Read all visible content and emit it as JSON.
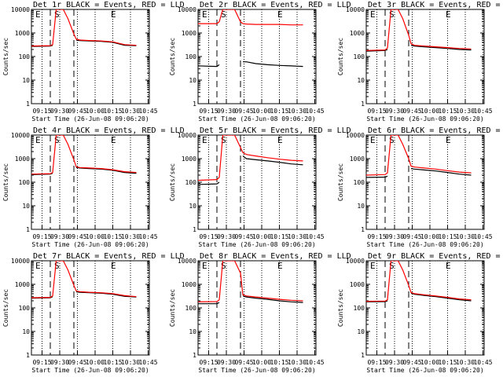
{
  "chart_data": [
    {
      "type": "line",
      "title": "Det 1r BLACK = Events, RED = LLD",
      "xlabel": "Start Time (26-Jun-08 09:06:20)",
      "ylabel": "Counts/sec",
      "yscale": "log",
      "ylim": [
        1,
        10000
      ],
      "xticks": [
        "09:15",
        "09:30",
        "09:45",
        "10:00",
        "10:15",
        "10:30",
        "10:45"
      ],
      "markers": [
        {
          "label": "E",
          "x": "09:08"
        },
        {
          "label": "S",
          "x": "09:24"
        },
        {
          "label": "E",
          "x": "10:12"
        }
      ],
      "series": [
        {
          "name": "Events",
          "color": "#000000",
          "x": [
            "09:06",
            "09:22",
            "09:24",
            "09:27",
            "09:37",
            "09:42",
            "09:44",
            "09:47",
            "09:55",
            "10:05",
            "10:15",
            "10:25",
            "10:35"
          ],
          "y": [
            270,
            280,
            300,
            null,
            null,
            null,
            500,
            480,
            460,
            440,
            400,
            300,
            290
          ]
        },
        {
          "name": "LLD",
          "color": "#ff0000",
          "x": [
            "09:06",
            "09:22",
            "09:24",
            "09:27",
            "09:33",
            "09:37",
            "09:42",
            "09:44",
            "09:47",
            "09:55",
            "10:05",
            "10:15",
            "10:25",
            "10:35"
          ],
          "y": [
            280,
            290,
            320,
            10000,
            10000,
            4000,
            900,
            550,
            500,
            480,
            460,
            420,
            320,
            300
          ]
        }
      ]
    },
    {
      "type": "line",
      "title": "Det 2r BLACK = Events, RED = LLD",
      "xlabel": "Start Time (26-Jun-08 09:06:20)",
      "ylabel": "Counts/sec",
      "yscale": "log",
      "ylim": [
        1,
        10000
      ],
      "xticks": [
        "09:15",
        "09:30",
        "09:45",
        "10:00",
        "10:15",
        "10:30",
        "10:45"
      ],
      "markers": [
        {
          "label": "E",
          "x": "09:08"
        },
        {
          "label": "S",
          "x": "09:24"
        },
        {
          "label": "E",
          "x": "10:12"
        }
      ],
      "series": [
        {
          "name": "Events",
          "color": "#000000",
          "x": [
            "09:06",
            "09:22",
            "09:24",
            "09:27",
            "09:37",
            "09:42",
            "09:44",
            "09:47",
            "09:55",
            "10:05",
            "10:15",
            "10:25",
            "10:35"
          ],
          "y": [
            40,
            38,
            45,
            null,
            null,
            null,
            60,
            60,
            50,
            45,
            42,
            40,
            38
          ]
        },
        {
          "name": "LLD",
          "color": "#ff0000",
          "x": [
            "09:06",
            "09:22",
            "09:24",
            "09:27",
            "09:33",
            "09:37",
            "09:42",
            "09:44",
            "09:47",
            "09:55",
            "10:05",
            "10:15",
            "10:25",
            "10:35"
          ],
          "y": [
            2500,
            2500,
            3000,
            10000,
            10000,
            10000,
            3000,
            2500,
            2400,
            2300,
            2300,
            2300,
            2200,
            2200
          ]
        }
      ]
    },
    {
      "type": "line",
      "title": "Det 3r BLACK = Events, RED = LLD",
      "xlabel": "Start Time (26-Jun-08 09:06:20)",
      "ylabel": "Counts/sec",
      "yscale": "log",
      "ylim": [
        1,
        10000
      ],
      "xticks": [
        "09:15",
        "09:30",
        "09:45",
        "10:00",
        "10:15",
        "10:30",
        "10:45"
      ],
      "markers": [
        {
          "label": "E",
          "x": "09:08"
        },
        {
          "label": "S",
          "x": "09:24"
        },
        {
          "label": "E",
          "x": "10:12"
        }
      ],
      "series": [
        {
          "name": "Events",
          "color": "#000000",
          "x": [
            "09:06",
            "09:22",
            "09:24",
            "09:27",
            "09:37",
            "09:42",
            "09:44",
            "09:47",
            "09:55",
            "10:05",
            "10:15",
            "10:25",
            "10:35"
          ],
          "y": [
            170,
            180,
            200,
            null,
            null,
            null,
            300,
            280,
            260,
            240,
            220,
            200,
            190
          ]
        },
        {
          "name": "LLD",
          "color": "#ff0000",
          "x": [
            "09:06",
            "09:22",
            "09:24",
            "09:27",
            "09:33",
            "09:37",
            "09:42",
            "09:44",
            "09:47",
            "09:55",
            "10:05",
            "10:15",
            "10:25",
            "10:35"
          ],
          "y": [
            180,
            190,
            230,
            10000,
            10000,
            4000,
            800,
            350,
            300,
            280,
            260,
            240,
            220,
            210
          ]
        }
      ]
    },
    {
      "type": "line",
      "title": "Det 4r BLACK = Events, RED = LLD",
      "xlabel": "Start Time (26-Jun-08 09:06:20)",
      "ylabel": "Counts/sec",
      "yscale": "log",
      "ylim": [
        1,
        10000
      ],
      "xticks": [
        "09:15",
        "09:30",
        "09:45",
        "10:00",
        "10:15",
        "10:30",
        "10:45"
      ],
      "markers": [
        {
          "label": "E",
          "x": "09:08"
        },
        {
          "label": "S",
          "x": "09:24"
        },
        {
          "label": "E",
          "x": "10:12"
        }
      ],
      "series": [
        {
          "name": "Events",
          "color": "#000000",
          "x": [
            "09:06",
            "09:22",
            "09:24",
            "09:27",
            "09:37",
            "09:42",
            "09:44",
            "09:47",
            "09:55",
            "10:05",
            "10:15",
            "10:25",
            "10:35"
          ],
          "y": [
            210,
            220,
            240,
            null,
            null,
            null,
            420,
            400,
            380,
            360,
            320,
            260,
            240
          ]
        },
        {
          "name": "LLD",
          "color": "#ff0000",
          "x": [
            "09:06",
            "09:22",
            "09:24",
            "09:27",
            "09:33",
            "09:37",
            "09:42",
            "09:44",
            "09:47",
            "09:55",
            "10:05",
            "10:15",
            "10:25",
            "10:35"
          ],
          "y": [
            220,
            230,
            260,
            10000,
            10000,
            4000,
            900,
            450,
            420,
            400,
            380,
            340,
            280,
            260
          ]
        }
      ]
    },
    {
      "type": "line",
      "title": "Det 5r BLACK = Events, RED = LLD",
      "xlabel": "Start Time (26-Jun-08 09:06:20)",
      "ylabel": "Counts/sec",
      "yscale": "log",
      "ylim": [
        1,
        10000
      ],
      "xticks": [
        "09:15",
        "09:30",
        "09:45",
        "10:00",
        "10:15",
        "10:30",
        "10:45"
      ],
      "markers": [
        {
          "label": "E",
          "x": "09:08"
        },
        {
          "label": "S",
          "x": "09:24"
        },
        {
          "label": "E",
          "x": "10:12"
        }
      ],
      "series": [
        {
          "name": "Events",
          "color": "#000000",
          "x": [
            "09:06",
            "09:22",
            "09:24",
            "09:27",
            "09:37",
            "09:42",
            "09:44",
            "09:47",
            "09:55",
            "10:05",
            "10:15",
            "10:25",
            "10:35"
          ],
          "y": [
            80,
            85,
            100,
            null,
            null,
            null,
            1300,
            1000,
            900,
            800,
            700,
            600,
            550
          ]
        },
        {
          "name": "LLD",
          "color": "#ff0000",
          "x": [
            "09:06",
            "09:22",
            "09:24",
            "09:27",
            "09:33",
            "09:37",
            "09:42",
            "09:44",
            "09:47",
            "09:55",
            "10:05",
            "10:15",
            "10:25",
            "10:35"
          ],
          "y": [
            120,
            130,
            160,
            10000,
            10000,
            10000,
            3000,
            1800,
            1500,
            1300,
            1100,
            950,
            850,
            800
          ]
        }
      ]
    },
    {
      "type": "line",
      "title": "Det 6r BLACK = Events, RED = LLD",
      "xlabel": "Start Time (26-Jun-08 09:06:20)",
      "ylabel": "Counts/sec",
      "yscale": "log",
      "ylim": [
        1,
        10000
      ],
      "xticks": [
        "09:15",
        "09:30",
        "09:45",
        "10:00",
        "10:15",
        "10:30",
        "10:45"
      ],
      "markers": [
        {
          "label": "E",
          "x": "09:08"
        },
        {
          "label": "S",
          "x": "09:24"
        },
        {
          "label": "E",
          "x": "10:12"
        }
      ],
      "series": [
        {
          "name": "Events",
          "color": "#000000",
          "x": [
            "09:06",
            "09:22",
            "09:24",
            "09:27",
            "09:37",
            "09:42",
            "09:44",
            "09:47",
            "09:55",
            "10:05",
            "10:15",
            "10:25",
            "10:35"
          ],
          "y": [
            160,
            165,
            180,
            null,
            null,
            null,
            380,
            360,
            330,
            300,
            260,
            220,
            200
          ]
        },
        {
          "name": "LLD",
          "color": "#ff0000",
          "x": [
            "09:06",
            "09:22",
            "09:24",
            "09:27",
            "09:33",
            "09:37",
            "09:42",
            "09:44",
            "09:47",
            "09:55",
            "10:05",
            "10:15",
            "10:25",
            "10:35"
          ],
          "y": [
            200,
            210,
            250,
            10000,
            10000,
            4000,
            1000,
            480,
            440,
            400,
            360,
            310,
            270,
            250
          ]
        }
      ]
    },
    {
      "type": "line",
      "title": "Det 7r BLACK = Events, RED = LLD",
      "xlabel": "Start Time (26-Jun-08 09:06:20)",
      "ylabel": "Counts/sec",
      "yscale": "log",
      "ylim": [
        1,
        10000
      ],
      "xticks": [
        "09:15",
        "09:30",
        "09:45",
        "10:00",
        "10:15",
        "10:30",
        "10:45"
      ],
      "markers": [
        {
          "label": "E",
          "x": "09:08"
        },
        {
          "label": "S",
          "x": "09:24"
        },
        {
          "label": "E",
          "x": "10:12"
        }
      ],
      "series": [
        {
          "name": "Events",
          "color": "#000000",
          "x": [
            "09:06",
            "09:22",
            "09:24",
            "09:27",
            "09:37",
            "09:42",
            "09:44",
            "09:47",
            "09:55",
            "10:05",
            "10:15",
            "10:25",
            "10:35"
          ],
          "y": [
            260,
            270,
            300,
            null,
            null,
            null,
            480,
            460,
            440,
            420,
            380,
            310,
            290
          ]
        },
        {
          "name": "LLD",
          "color": "#ff0000",
          "x": [
            "09:06",
            "09:22",
            "09:24",
            "09:27",
            "09:33",
            "09:37",
            "09:42",
            "09:44",
            "09:47",
            "09:55",
            "10:05",
            "10:15",
            "10:25",
            "10:35"
          ],
          "y": [
            270,
            280,
            320,
            10000,
            10000,
            4000,
            900,
            520,
            490,
            460,
            440,
            400,
            330,
            300
          ]
        }
      ]
    },
    {
      "type": "line",
      "title": "Det 8r BLACK = Events, RED = LLD",
      "xlabel": "Start Time (26-Jun-08 09:06:20)",
      "ylabel": "Counts/sec",
      "yscale": "log",
      "ylim": [
        1,
        10000
      ],
      "xticks": [
        "09:15",
        "09:30",
        "09:45",
        "10:00",
        "10:15",
        "10:30",
        "10:45"
      ],
      "markers": [
        {
          "label": "E",
          "x": "09:08"
        },
        {
          "label": "S",
          "x": "09:24"
        },
        {
          "label": "E",
          "x": "10:12"
        }
      ],
      "series": [
        {
          "name": "Events",
          "color": "#000000",
          "x": [
            "09:06",
            "09:22",
            "09:24",
            "09:27",
            "09:37",
            "09:42",
            "09:44",
            "09:47",
            "09:55",
            "10:05",
            "10:15",
            "10:25",
            "10:35"
          ],
          "y": [
            150,
            150,
            170,
            null,
            null,
            null,
            320,
            290,
            260,
            230,
            200,
            180,
            170
          ]
        },
        {
          "name": "LLD",
          "color": "#ff0000",
          "x": [
            "09:06",
            "09:22",
            "09:24",
            "09:27",
            "09:33",
            "09:37",
            "09:42",
            "09:44",
            "09:47",
            "09:55",
            "10:05",
            "10:15",
            "10:25",
            "10:35"
          ],
          "y": [
            180,
            185,
            220,
            10000,
            10000,
            10000,
            3000,
            360,
            320,
            290,
            260,
            230,
            210,
            200
          ]
        }
      ]
    },
    {
      "type": "line",
      "title": "Det 9r BLACK = Events, RED = LLD",
      "xlabel": "Start Time (26-Jun-08 09:06:20)",
      "ylabel": "Counts/sec",
      "yscale": "log",
      "ylim": [
        1,
        10000
      ],
      "xticks": [
        "09:15",
        "09:30",
        "09:45",
        "10:00",
        "10:15",
        "10:30",
        "10:45"
      ],
      "markers": [
        {
          "label": "E",
          "x": "09:08"
        },
        {
          "label": "S",
          "x": "09:24"
        },
        {
          "label": "E",
          "x": "10:12"
        }
      ],
      "series": [
        {
          "name": "Events",
          "color": "#000000",
          "x": [
            "09:06",
            "09:22",
            "09:24",
            "09:27",
            "09:37",
            "09:42",
            "09:44",
            "09:47",
            "09:55",
            "10:05",
            "10:15",
            "10:25",
            "10:35"
          ],
          "y": [
            180,
            185,
            200,
            null,
            null,
            null,
            420,
            380,
            340,
            300,
            260,
            220,
            200
          ]
        },
        {
          "name": "LLD",
          "color": "#ff0000",
          "x": [
            "09:06",
            "09:22",
            "09:24",
            "09:27",
            "09:33",
            "09:37",
            "09:42",
            "09:44",
            "09:47",
            "09:55",
            "10:05",
            "10:15",
            "10:25",
            "10:35"
          ],
          "y": [
            190,
            195,
            220,
            10000,
            10000,
            4000,
            900,
            450,
            400,
            360,
            320,
            280,
            240,
            220
          ]
        }
      ]
    }
  ]
}
